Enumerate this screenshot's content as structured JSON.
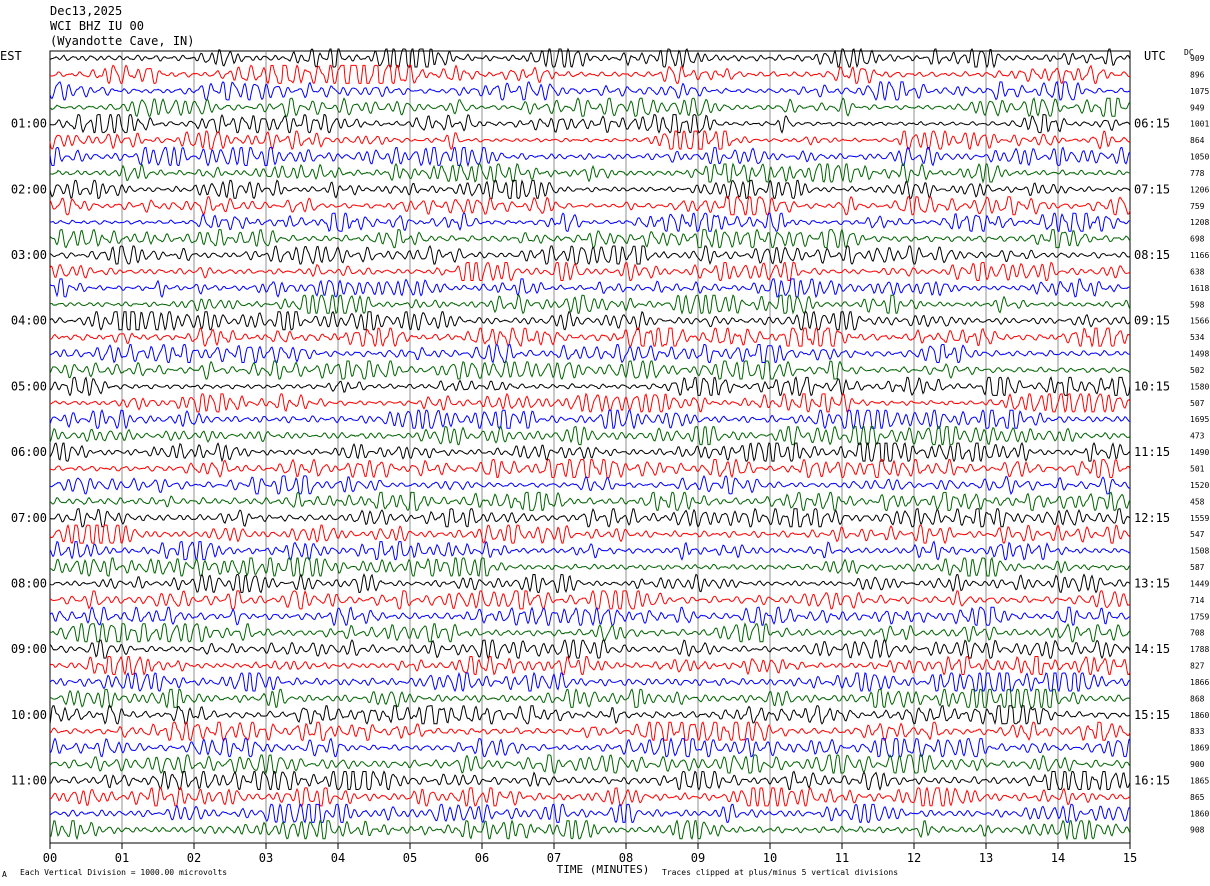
{
  "header": {
    "date": "Dec13,2025",
    "station": "WCI BHZ IU 00",
    "location": "(Wyandotte Cave, IN)"
  },
  "left_zone": "EST",
  "right_zone": "UTC",
  "dc_label": "DC",
  "footer": {
    "scale_note": "Each Vertical Division = 1000.00 microvolts",
    "clip_note": "Traces clipped at plus/minus 5 vertical divisions",
    "corner_mark": "A"
  },
  "colors": {
    "trace_cycle": [
      "#000000",
      "#ff0000",
      "#0000ff",
      "#006400"
    ],
    "grid": "#777777"
  },
  "chart_data": {
    "type": "line",
    "title": "WCI BHZ IU 00",
    "xlabel": "TIME (MINUTES)",
    "x_ticks": [
      "00",
      "01",
      "02",
      "03",
      "04",
      "05",
      "06",
      "07",
      "08",
      "09",
      "10",
      "11",
      "12",
      "13",
      "14",
      "15"
    ],
    "xlim": [
      0,
      15
    ],
    "hour_labels_left": [
      "01:00",
      "02:00",
      "03:00",
      "04:00",
      "05:00",
      "06:00",
      "07:00",
      "08:00",
      "09:00",
      "10:00",
      "11:00"
    ],
    "hour_labels_right": [
      "06:15",
      "07:15",
      "08:15",
      "09:15",
      "10:15",
      "11:15",
      "12:15",
      "13:15",
      "14:15",
      "15:15",
      "16:15"
    ],
    "dc_offsets": [
      "909",
      "896",
      "1075",
      "949",
      "1001",
      "864",
      "1050",
      "778",
      "1206",
      "759",
      "1208",
      "698",
      "1166",
      "638",
      "1618",
      "598",
      "1566",
      "534",
      "1498",
      "502",
      "1580",
      "507",
      "1695",
      "473",
      "1490",
      "501",
      "1520",
      "458",
      "1559",
      "547",
      "1508",
      "587",
      "1449",
      "714",
      "1759",
      "708",
      "1788",
      "827",
      "1866",
      "868",
      "1860",
      "833",
      "1869",
      "900",
      "1865",
      "865",
      "1860",
      "908"
    ],
    "grid": true
  }
}
